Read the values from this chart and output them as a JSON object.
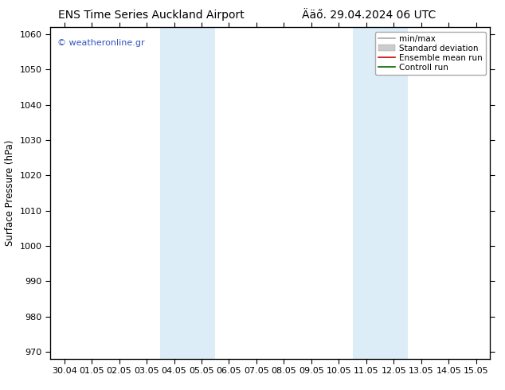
{
  "title_left": "ENS Time Series Auckland Airport",
  "title_right": "Ääő. 29.04.2024 06 UTC",
  "ylabel": "Surface Pressure (hPa)",
  "ylim": [
    968,
    1062
  ],
  "yticks": [
    970,
    980,
    990,
    1000,
    1010,
    1020,
    1030,
    1040,
    1050,
    1060
  ],
  "xtick_labels": [
    "30.04",
    "01.05",
    "02.05",
    "03.05",
    "04.05",
    "05.05",
    "06.05",
    "07.05",
    "08.05",
    "09.05",
    "10.05",
    "11.05",
    "12.05",
    "13.05",
    "14.05",
    "15.05"
  ],
  "shaded_bands": [
    {
      "xstart": 4,
      "xend": 6,
      "color": "#dcedf8"
    },
    {
      "xstart": 11,
      "xend": 13,
      "color": "#dcedf8"
    }
  ],
  "watermark": "© weatheronline.gr",
  "watermark_color": "#3355bb",
  "legend_items": [
    {
      "label": "min/max",
      "color": "#aaaaaa",
      "lw": 1.2,
      "ls": "-",
      "type": "line"
    },
    {
      "label": "Standard deviation",
      "color": "#cccccc",
      "lw": 7,
      "ls": "-",
      "type": "patch"
    },
    {
      "label": "Ensemble mean run",
      "color": "#cc0000",
      "lw": 1.2,
      "ls": "-",
      "type": "line"
    },
    {
      "label": "Controll run",
      "color": "#006600",
      "lw": 1.2,
      "ls": "-",
      "type": "line"
    }
  ],
  "background_color": "#ffffff",
  "plot_bg_color": "#ffffff",
  "border_color": "#000000",
  "title_fontsize": 10,
  "axis_label_fontsize": 8.5,
  "tick_fontsize": 8,
  "legend_fontsize": 7.5
}
